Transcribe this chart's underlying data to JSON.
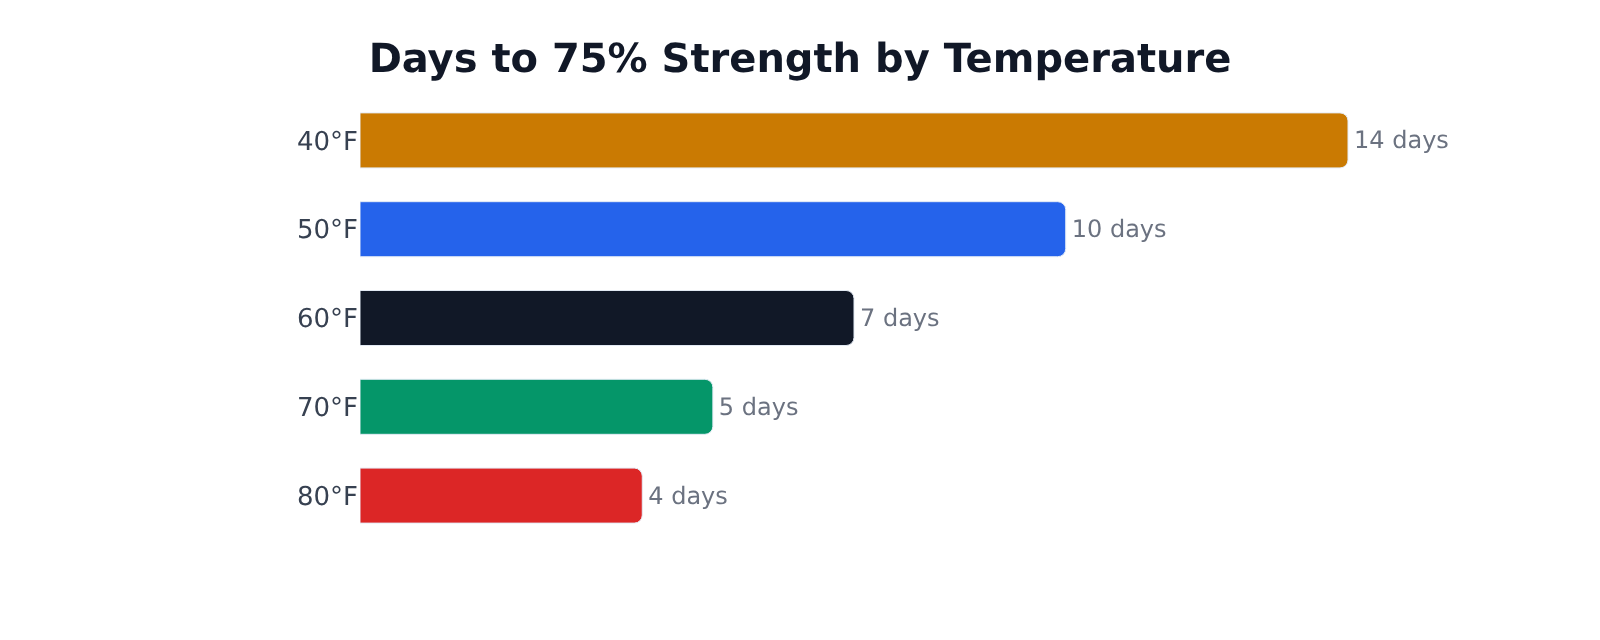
{
  "chart_data": {
    "type": "bar",
    "orientation": "horizontal",
    "title": "Days to 75% Strength by Temperature",
    "categories": [
      "40°F",
      "50°F",
      "60°F",
      "70°F",
      "80°F"
    ],
    "values": [
      14,
      10,
      7,
      5,
      4
    ],
    "colors": [
      "#ca7a02",
      "#2563eb",
      "#111827",
      "#059669",
      "#dc2626"
    ],
    "value_labels": [
      "14 days",
      "10 days",
      "7 days",
      "5 days",
      "4 days"
    ],
    "tick_labels": "y"
  }
}
